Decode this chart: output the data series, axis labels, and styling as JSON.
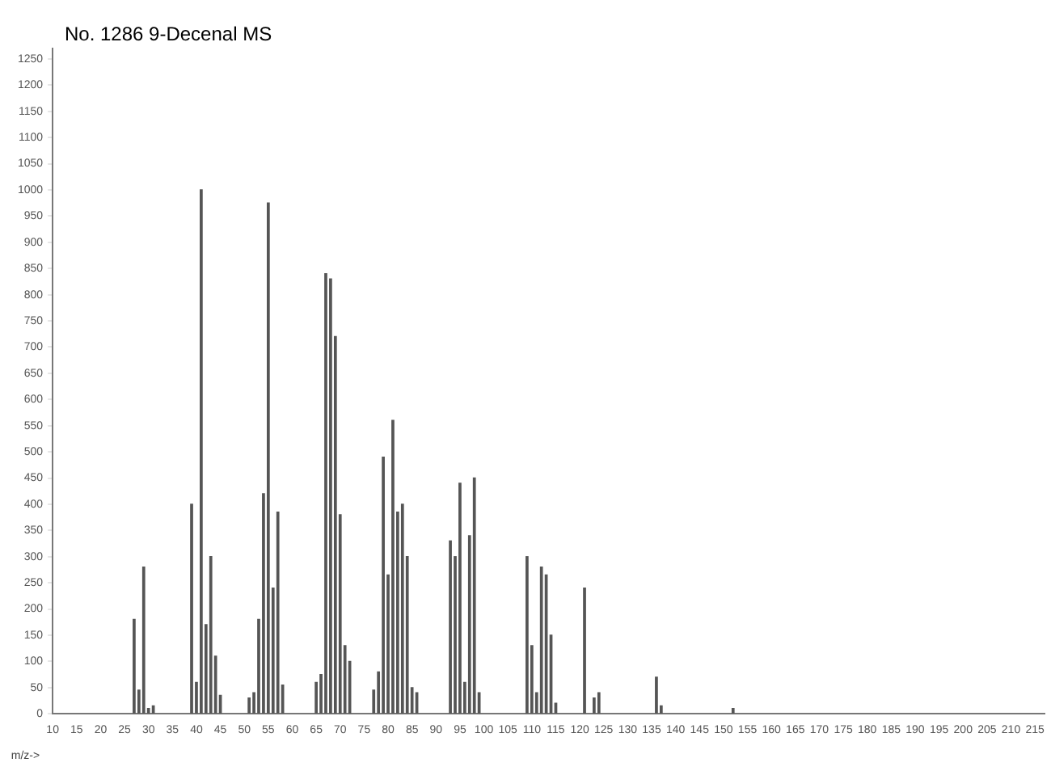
{
  "chart_data": {
    "type": "bar",
    "title": "No. 1286 9-Decenal MS",
    "xlabel": "m/z->",
    "x": [
      27,
      28,
      29,
      30,
      31,
      39,
      40,
      41,
      42,
      43,
      44,
      45,
      51,
      52,
      53,
      54,
      55,
      56,
      57,
      58,
      65,
      66,
      67,
      68,
      69,
      70,
      71,
      72,
      77,
      78,
      79,
      80,
      81,
      82,
      83,
      84,
      85,
      86,
      93,
      94,
      95,
      96,
      97,
      98,
      99,
      109,
      110,
      111,
      112,
      113,
      114,
      115,
      121,
      123,
      124,
      136,
      137,
      152
    ],
    "values": [
      180,
      45,
      280,
      10,
      15,
      400,
      60,
      1000,
      170,
      300,
      110,
      35,
      30,
      40,
      180,
      420,
      975,
      240,
      385,
      55,
      60,
      75,
      840,
      830,
      720,
      380,
      130,
      100,
      45,
      80,
      490,
      265,
      560,
      385,
      400,
      300,
      50,
      40,
      330,
      300,
      440,
      60,
      340,
      450,
      40,
      300,
      130,
      40,
      280,
      265,
      150,
      20,
      240,
      30,
      40,
      70,
      15,
      10
    ],
    "color": "#555555",
    "xlim": [
      10,
      217
    ],
    "xticks": [
      10,
      15,
      20,
      25,
      30,
      35,
      40,
      45,
      50,
      55,
      60,
      65,
      70,
      75,
      80,
      85,
      90,
      95,
      100,
      105,
      110,
      115,
      120,
      125,
      130,
      135,
      140,
      145,
      150,
      155,
      160,
      165,
      170,
      175,
      180,
      185,
      190,
      195,
      200,
      205,
      210,
      215
    ],
    "ylim": [
      0,
      1270
    ],
    "yticks": [
      0,
      50,
      100,
      150,
      200,
      250,
      300,
      350,
      400,
      450,
      500,
      550,
      600,
      650,
      700,
      750,
      800,
      850,
      900,
      950,
      1000,
      1050,
      1100,
      1150,
      1200,
      1250
    ],
    "grid": false,
    "legend": false
  }
}
